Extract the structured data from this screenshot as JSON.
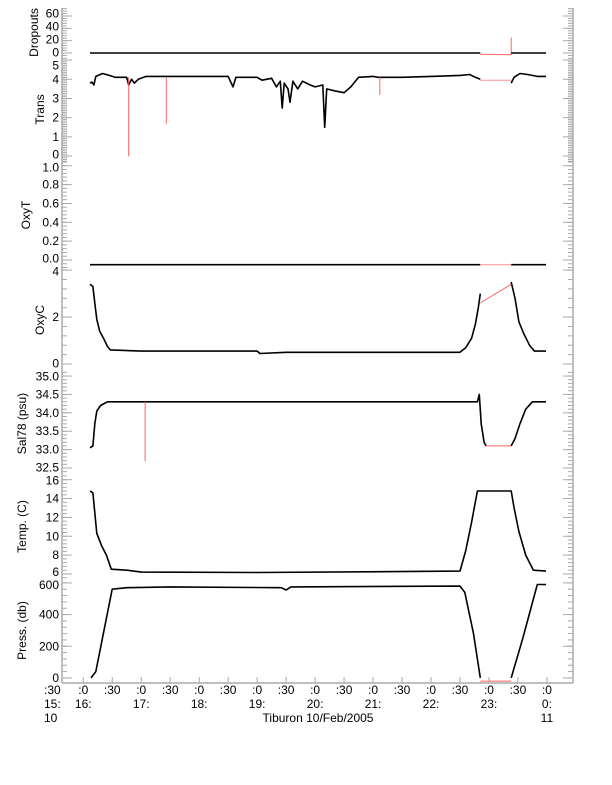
{
  "chart_data": [
    {
      "type": "line",
      "ylabel": "Dropouts",
      "ylim": [
        -6.5,
        73
      ],
      "yticks": [
        "0",
        "20",
        "40",
        "60"
      ],
      "ytick_values": [
        0,
        20,
        40,
        60
      ],
      "minor": 4,
      "series": [
        {
          "color": "#000000",
          "points": [
            [
              "16:07",
              0
            ],
            [
              "22:51",
              0
            ]
          ]
        },
        {
          "color": "#ff6060",
          "points": [
            [
              "22:51",
              -2
            ],
            [
              "23:23",
              -3
            ],
            [
              "23:23",
              25
            ]
          ]
        },
        {
          "color": "#000000",
          "points": [
            [
              "23:23",
              0
            ],
            [
              "23:59",
              0
            ]
          ]
        }
      ]
    },
    {
      "type": "line",
      "ylabel": "Trans",
      "ylim": [
        -0.31,
        5.16
      ],
      "yticks": [
        "0",
        "1",
        "2",
        "3",
        "4",
        "5"
      ],
      "ytick_values": [
        0,
        1,
        2,
        3,
        4,
        5
      ],
      "minor": 10,
      "series": [
        {
          "color": "#000000",
          "points": [
            [
              "16:07",
              3.8
            ],
            [
              "16:09",
              3.85
            ],
            [
              "16:11",
              3.7
            ],
            [
              "16:13",
              4.15
            ],
            [
              "16:20",
              4.3
            ],
            [
              "16:27",
              4.2
            ],
            [
              "16:33",
              4.1
            ],
            [
              "16:45",
              4.1
            ],
            [
              "16:47",
              3.7
            ],
            [
              "16:50",
              4.0
            ],
            [
              "16:53",
              3.8
            ],
            [
              "16:57",
              4.0
            ],
            [
              "17:05",
              4.15
            ],
            [
              "17:30",
              4.15
            ],
            [
              "18:00",
              4.15
            ],
            [
              "18:30",
              4.15
            ],
            [
              "18:35",
              3.6
            ],
            [
              "18:38",
              4.1
            ],
            [
              "19:00",
              4.1
            ],
            [
              "19:05",
              3.95
            ],
            [
              "19:15",
              4.05
            ],
            [
              "19:20",
              3.6
            ],
            [
              "19:24",
              3.9
            ],
            [
              "19:26",
              2.5
            ],
            [
              "19:28",
              3.8
            ],
            [
              "19:32",
              3.5
            ],
            [
              "19:34",
              2.8
            ],
            [
              "19:37",
              3.9
            ],
            [
              "19:42",
              3.5
            ],
            [
              "19:47",
              3.9
            ],
            [
              "19:55",
              3.7
            ],
            [
              "20:00",
              3.6
            ],
            [
              "20:08",
              3.7
            ],
            [
              "20:10",
              1.5
            ],
            [
              "20:12",
              3.5
            ],
            [
              "20:20",
              3.4
            ],
            [
              "20:30",
              3.3
            ],
            [
              "20:37",
              3.6
            ],
            [
              "20:45",
              4.1
            ],
            [
              "21:00",
              4.15
            ],
            [
              "21:05",
              4.1
            ],
            [
              "21:30",
              4.1
            ],
            [
              "22:00",
              4.15
            ],
            [
              "22:30",
              4.2
            ],
            [
              "22:40",
              4.25
            ],
            [
              "22:46",
              4.1
            ],
            [
              "22:51",
              4.0
            ]
          ]
        },
        {
          "color": "#ff6060",
          "points": [
            [
              "16:47",
              4.1
            ],
            [
              "16:47",
              0
            ],
            [
              "16:47",
              4.1
            ]
          ]
        },
        {
          "color": "#ff6060",
          "points": [
            [
              "17:26",
              4.1
            ],
            [
              "17:26",
              1.7
            ],
            [
              "17:26",
              4.1
            ]
          ]
        },
        {
          "color": "#ff6060",
          "points": [
            [
              "21:07",
              4.1
            ],
            [
              "21:07",
              3.2
            ],
            [
              "21:07",
              4.1
            ]
          ]
        },
        {
          "color": "#ff9090",
          "points": [
            [
              "22:51",
              3.95
            ],
            [
              "23:23",
              3.95
            ]
          ]
        },
        {
          "color": "#000000",
          "points": [
            [
              "23:23",
              3.8
            ],
            [
              "23:26",
              4.1
            ],
            [
              "23:32",
              4.3
            ],
            [
              "23:40",
              4.25
            ],
            [
              "23:50",
              4.15
            ],
            [
              "23:59",
              4.15
            ]
          ]
        }
      ]
    },
    {
      "type": "line",
      "ylabel": "OxyT",
      "ylim": [
        -0.085,
        1.04
      ],
      "yticks": [
        "0.0",
        "0.2",
        "0.4",
        "0.6",
        "0.8",
        "1.0"
      ],
      "ytick_values": [
        0,
        0.2,
        0.4,
        0.6,
        0.8,
        1.0
      ],
      "minor": 4,
      "series": [
        {
          "color": "#000000",
          "points": [
            [
              "16:07",
              -0.05
            ],
            [
              "22:51",
              -0.05
            ]
          ]
        },
        {
          "color": "#ff9090",
          "points": [
            [
              "22:51",
              -0.05
            ],
            [
              "23:23",
              -0.05
            ]
          ]
        },
        {
          "color": "#000000",
          "points": [
            [
              "23:23",
              -0.05
            ],
            [
              "23:59",
              -0.05
            ]
          ]
        }
      ]
    },
    {
      "type": "line",
      "ylabel": "OxyC",
      "ylim": [
        -0.34,
        4.09
      ],
      "yticks": [
        "0",
        "2",
        "4"
      ],
      "ytick_values": [
        0,
        2,
        4
      ],
      "minor": 4,
      "series": [
        {
          "color": "#000000",
          "points": [
            [
              "16:07",
              3.4
            ],
            [
              "16:10",
              3.3
            ],
            [
              "16:12",
              2.6
            ],
            [
              "16:14",
              1.9
            ],
            [
              "16:17",
              1.4
            ],
            [
              "16:21",
              1.1
            ],
            [
              "16:25",
              0.75
            ],
            [
              "16:28",
              0.6
            ],
            [
              "17:00",
              0.55
            ],
            [
              "19:00",
              0.55
            ],
            [
              "19:03",
              0.45
            ],
            [
              "19:30",
              0.5
            ],
            [
              "22:30",
              0.5
            ],
            [
              "22:36",
              0.7
            ],
            [
              "22:42",
              1.1
            ],
            [
              "22:46",
              1.7
            ],
            [
              "22:49",
              2.4
            ],
            [
              "22:51",
              3.0
            ]
          ]
        },
        {
          "color": "#ff6060",
          "points": [
            [
              "22:51",
              2.6
            ],
            [
              "23:23",
              3.4
            ]
          ]
        },
        {
          "color": "#000000",
          "points": [
            [
              "23:23",
              3.5
            ],
            [
              "23:27",
              2.8
            ],
            [
              "23:31",
              1.8
            ],
            [
              "23:36",
              1.3
            ],
            [
              "23:42",
              0.8
            ],
            [
              "23:47",
              0.55
            ],
            [
              "23:59",
              0.55
            ]
          ]
        }
      ]
    },
    {
      "type": "line",
      "ylabel": "Sal78 (psu)",
      "ylim": [
        32.31,
        35.11
      ],
      "yticks": [
        "32.5",
        "33.0",
        "33.5",
        "34.0",
        "34.5",
        "35.0"
      ],
      "ytick_values": [
        32.5,
        33.0,
        33.5,
        34.0,
        34.5,
        35.0
      ],
      "minor": 4,
      "series": [
        {
          "color": "#000000",
          "points": [
            [
              "16:07",
              33.05
            ],
            [
              "16:10",
              33.1
            ],
            [
              "16:12",
              33.7
            ],
            [
              "16:14",
              34.05
            ],
            [
              "16:18",
              34.2
            ],
            [
              "16:25",
              34.3
            ],
            [
              "17:00",
              34.3
            ],
            [
              "19:00",
              34.3
            ],
            [
              "21:00",
              34.3
            ],
            [
              "22:45",
              34.3
            ],
            [
              "22:48",
              34.3
            ],
            [
              "22:50",
              34.5
            ],
            [
              "22:52",
              33.7
            ],
            [
              "22:55",
              33.2
            ],
            [
              "22:57",
              33.1
            ]
          ]
        },
        {
          "color": "#ff6060",
          "points": [
            [
              "17:04",
              34.3
            ],
            [
              "17:04",
              32.7
            ],
            [
              "17:04",
              34.3
            ]
          ]
        },
        {
          "color": "#ff6060",
          "points": [
            [
              "22:57",
              33.1
            ],
            [
              "23:23",
              33.1
            ]
          ]
        },
        {
          "color": "#000000",
          "points": [
            [
              "23:23",
              33.1
            ],
            [
              "23:27",
              33.3
            ],
            [
              "23:32",
              33.7
            ],
            [
              "23:38",
              34.1
            ],
            [
              "23:45",
              34.3
            ],
            [
              "23:59",
              34.3
            ]
          ]
        }
      ]
    },
    {
      "type": "line",
      "ylabel": "Temp. (C)",
      "ylim": [
        5.57,
        16.5
      ],
      "yticks": [
        "6",
        "8",
        "10",
        "12",
        "14",
        "16"
      ],
      "ytick_values": [
        6,
        8,
        10,
        12,
        14,
        16
      ],
      "minor": 4,
      "series": [
        {
          "color": "#000000",
          "points": [
            [
              "16:07",
              14.8
            ],
            [
              "16:10",
              14.6
            ],
            [
              "16:12",
              12.5
            ],
            [
              "16:14",
              10.3
            ],
            [
              "16:19",
              9.0
            ],
            [
              "16:24",
              8.0
            ],
            [
              "16:29",
              6.5
            ],
            [
              "16:45",
              6.4
            ],
            [
              "17:00",
              6.2
            ],
            [
              "19:00",
              6.15
            ],
            [
              "22:30",
              6.3
            ],
            [
              "22:36",
              8.5
            ],
            [
              "22:42",
              11.5
            ],
            [
              "22:48",
              14.8
            ],
            [
              "23:23",
              14.8
            ],
            [
              "23:26",
              13.0
            ],
            [
              "23:31",
              10.5
            ],
            [
              "23:38",
              8.0
            ],
            [
              "23:46",
              6.4
            ],
            [
              "23:59",
              6.3
            ]
          ]
        }
      ]
    },
    {
      "type": "line",
      "ylabel": "Press. (db)",
      "ylim": [
        -32,
        631
      ],
      "yticks": [
        "0",
        "200",
        "400",
        "600"
      ],
      "ytick_values": [
        0,
        200,
        400,
        600
      ],
      "minor": 4,
      "series": [
        {
          "color": "#000000",
          "points": [
            [
              "16:08",
              0
            ],
            [
              "16:13",
              40
            ],
            [
              "16:30",
              560
            ],
            [
              "16:45",
              570
            ],
            [
              "17:30",
              575
            ],
            [
              "19:25",
              570
            ],
            [
              "19:30",
              555
            ],
            [
              "19:35",
              575
            ],
            [
              "22:30",
              580
            ],
            [
              "22:35",
              540
            ],
            [
              "22:44",
              280
            ],
            [
              "22:51",
              0
            ]
          ]
        },
        {
          "color": "#ff6060",
          "points": [
            [
              "22:51",
              -20
            ],
            [
              "23:23",
              -20
            ]
          ]
        },
        {
          "color": "#000000",
          "points": [
            [
              "23:23",
              0
            ],
            [
              "23:35",
              250
            ],
            [
              "23:50",
              590
            ],
            [
              "23:59",
              590
            ]
          ]
        }
      ]
    }
  ],
  "x_axis": {
    "start": "15:38",
    "end": "24:27",
    "ticks": [
      {
        "time": "15:38",
        "l1": ":30",
        "l2": "15:",
        "l3": "10"
      },
      {
        "time": "16:00",
        "l1": ":0",
        "l2": "16:"
      },
      {
        "time": "16:30",
        "l1": ":30"
      },
      {
        "time": "17:00",
        "l1": ":0",
        "l2": "17:"
      },
      {
        "time": "17:30",
        "l1": ":30"
      },
      {
        "time": "18:00",
        "l1": ":0",
        "l2": "18:"
      },
      {
        "time": "18:30",
        "l1": ":30"
      },
      {
        "time": "19:00",
        "l1": ":0",
        "l2": "19:"
      },
      {
        "time": "19:30",
        "l1": ":30"
      },
      {
        "time": "20:00",
        "l1": ":0",
        "l2": "20:"
      },
      {
        "time": "20:30",
        "l1": ":30"
      },
      {
        "time": "21:00",
        "l1": ":0",
        "l2": "21:"
      },
      {
        "time": "21:30",
        "l1": ":30"
      },
      {
        "time": "22:00",
        "l1": ":0",
        "l2": "22:"
      },
      {
        "time": "22:30",
        "l1": ":30"
      },
      {
        "time": "23:00",
        "l1": ":0",
        "l2": "23:"
      },
      {
        "time": "23:30",
        "l1": ":30"
      },
      {
        "time": "24:00",
        "l1": ":0",
        "l2": "0:",
        "l3": "11"
      }
    ],
    "title": "Tiburon 10/Feb/2005"
  },
  "colors": {
    "axis": "#aaaaaa",
    "data": "#000000",
    "flagged": "#ff6060"
  }
}
